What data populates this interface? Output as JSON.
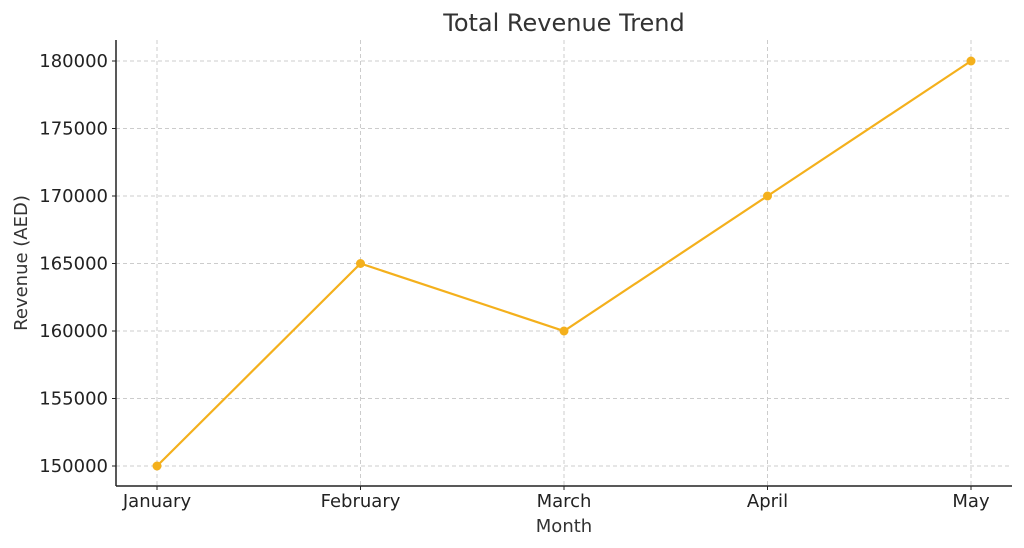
{
  "chart_data": {
    "type": "line",
    "title": "Total Revenue Trend",
    "xlabel": "Month",
    "ylabel": "Revenue (AED)",
    "categories": [
      "January",
      "February",
      "March",
      "April",
      "May"
    ],
    "series": [
      {
        "name": "Total Revenue",
        "values": [
          150000,
          165000,
          160000,
          170000,
          180000
        ],
        "color": "#f4b01c"
      }
    ],
    "yticks": [
      150000,
      155000,
      160000,
      165000,
      170000,
      175000,
      180000
    ],
    "ylim": [
      148500,
      181500
    ],
    "grid": true,
    "legend": "none"
  }
}
